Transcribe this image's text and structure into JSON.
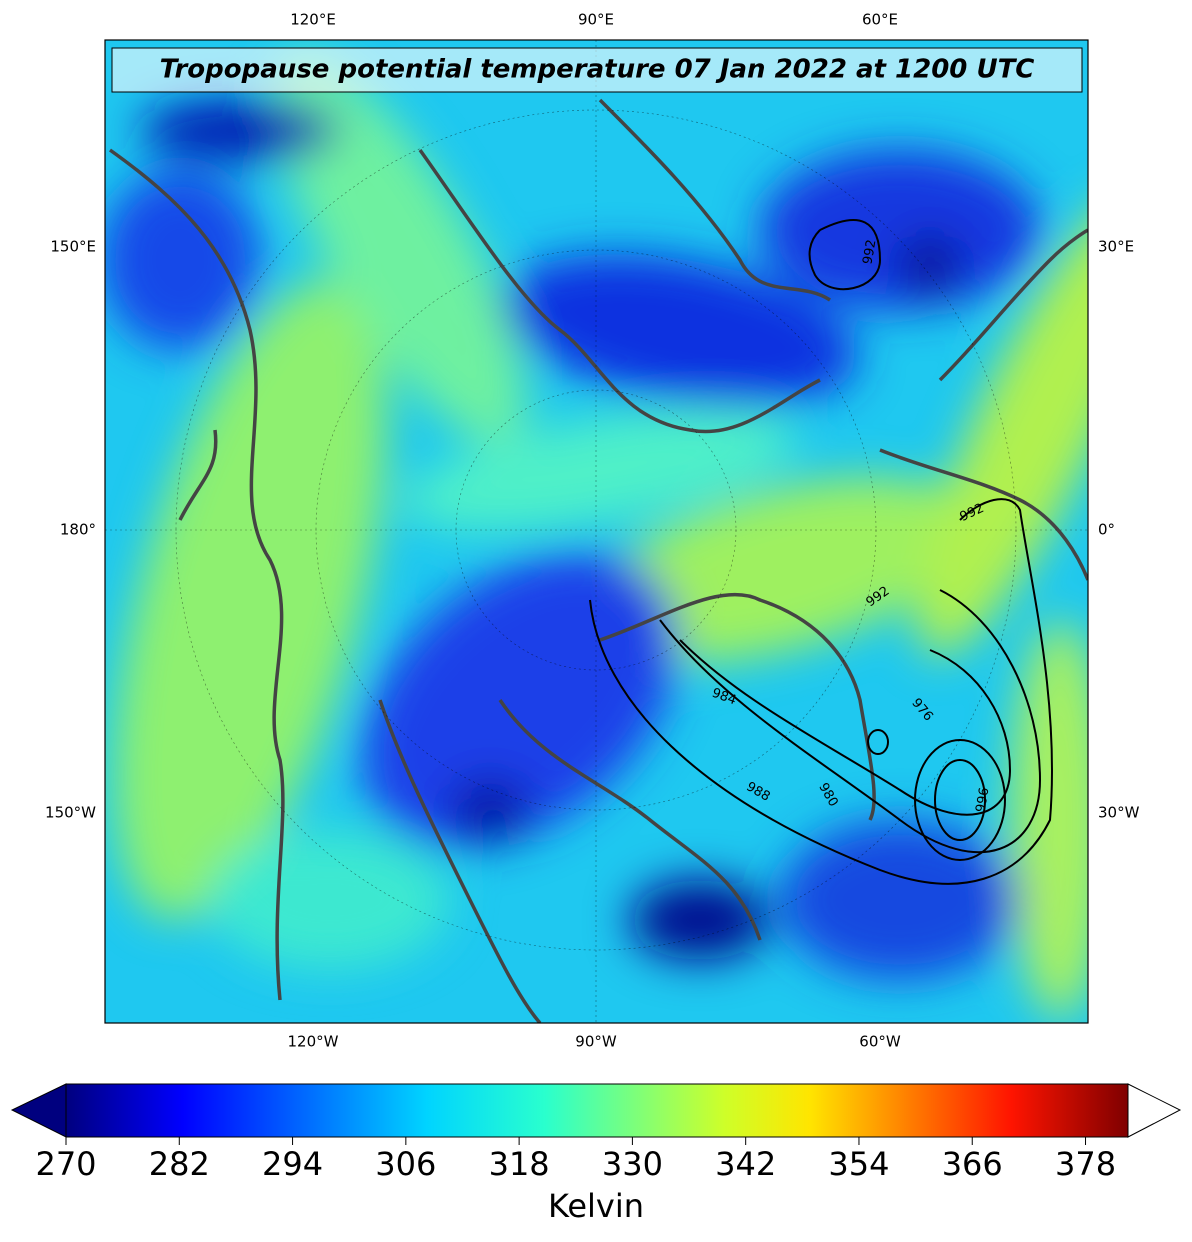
{
  "title": "Tropopause potential temperature 07 Jan 2022 at 1200 UTC",
  "map": {
    "top_labels": [
      "120°E",
      "90°E",
      "60°E"
    ],
    "bottom_labels": [
      "120°W",
      "90°W",
      "60°W"
    ],
    "left_labels": [
      "150°E",
      "180°",
      "150°W"
    ],
    "right_labels": [
      "30°E",
      "0°",
      "30°W"
    ],
    "contour_labels": [
      "992",
      "992",
      "992",
      "984",
      "988",
      "976",
      "980",
      "996"
    ]
  },
  "colorbar": {
    "lim": [
      270,
      382.5
    ],
    "ticks": [
      270,
      282,
      294,
      306,
      318,
      330,
      342,
      354,
      366,
      378
    ],
    "label": "Kelvin"
  }
}
